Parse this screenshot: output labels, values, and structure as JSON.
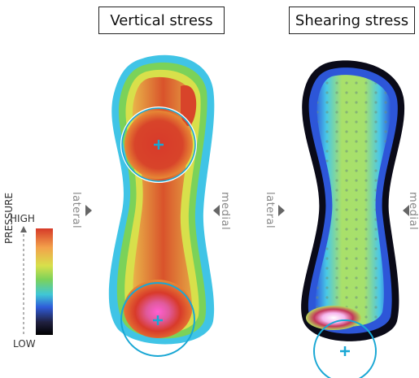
{
  "titles": {
    "vertical": "Vertical stress",
    "shearing": "Shearing stress"
  },
  "labels": {
    "lateral": "lateral",
    "medial": "medial"
  },
  "legend": {
    "high": "HIGH",
    "low": "LOW",
    "axis": "PRESSURE",
    "colors": [
      "#d63a28",
      "#f3a24b",
      "#d8e04b",
      "#7cd25a",
      "#3fc7d6",
      "#2f5bd8",
      "#202040",
      "#000000"
    ]
  },
  "colors": {
    "marker": "#19a7d4",
    "hot": "#d83a2a",
    "peak": "#ff5fd2"
  }
}
